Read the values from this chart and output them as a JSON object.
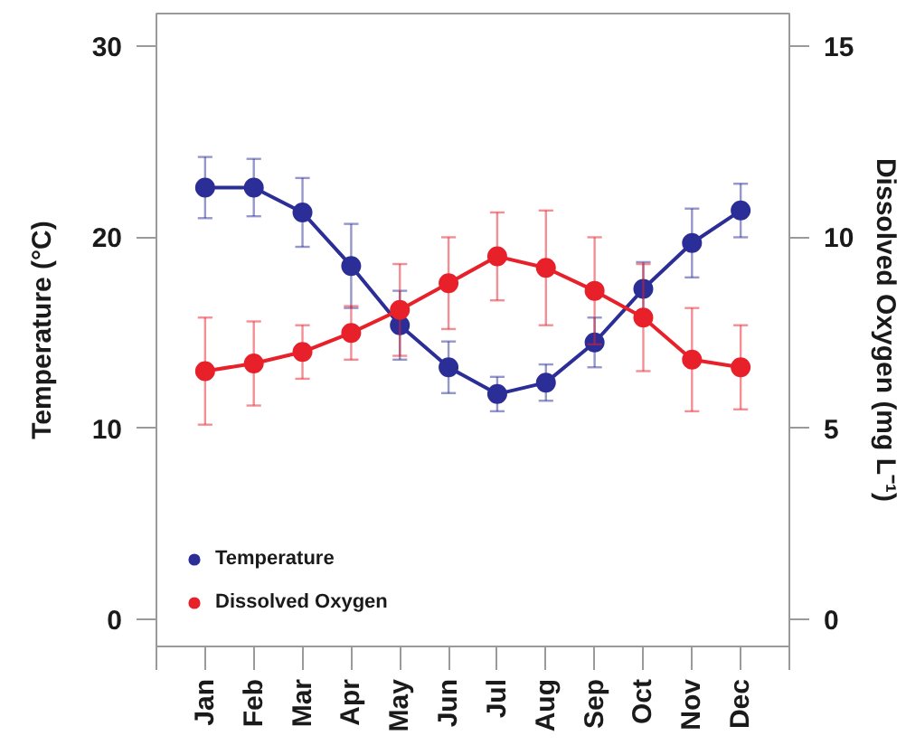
{
  "chart_data": {
    "type": "line",
    "categories": [
      "Jan",
      "Feb",
      "Mar",
      "Apr",
      "May",
      "Jun",
      "Jul",
      "Aug",
      "Sep",
      "Oct",
      "Nov",
      "Dec"
    ],
    "ylabel": "Temperature (°C)",
    "y2label": "Dissolved Oxygen (mg L⁻¹)",
    "ylim": [
      -1.4,
      31.7
    ],
    "yticks": [
      0,
      10,
      20,
      30
    ],
    "y2lim": [
      -0.7,
      15.85
    ],
    "y2ticks": [
      0,
      5,
      10,
      15
    ],
    "series": [
      {
        "name": "Temperature",
        "color": "#2b2e96",
        "values": [
          22.6,
          22.6,
          21.3,
          18.5,
          15.4,
          13.2,
          11.8,
          12.4,
          14.5,
          17.3,
          19.7,
          21.4
        ],
        "errors": [
          1.6,
          1.5,
          1.8,
          2.2,
          1.8,
          1.35,
          0.9,
          0.95,
          1.3,
          1.4,
          1.8,
          1.4
        ]
      },
      {
        "name": "Dissolved Oxygen",
        "color": "#e8202a",
        "axis": "y2",
        "values": [
          6.5,
          6.7,
          7.0,
          7.5,
          8.1,
          8.8,
          9.5,
          9.2,
          8.6,
          7.9,
          6.8,
          6.6
        ],
        "errors": [
          1.4,
          1.1,
          0.7,
          0.7,
          1.2,
          1.2,
          1.15,
          1.5,
          1.4,
          1.4,
          1.35,
          1.1
        ]
      }
    ],
    "marker": "circle",
    "line_style": "solid",
    "legend": "bottom left",
    "grid": false
  }
}
